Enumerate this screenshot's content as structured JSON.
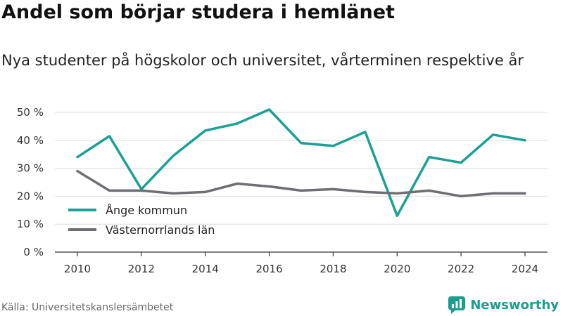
{
  "title": "Andel som börjar studera i hemlänet",
  "subtitle": "Nya studenter på högskolor och universitet, vårterminen respektive år",
  "source": "Källa: Universitetskanslersämbetet",
  "brand": {
    "name": "Newsworthy",
    "icon": "newsworthy-logo-icon",
    "color": "#1b9e8f"
  },
  "chart_data": {
    "type": "line",
    "x": [
      2010,
      2011,
      2012,
      2013,
      2014,
      2015,
      2016,
      2017,
      2018,
      2019,
      2020,
      2021,
      2022,
      2023,
      2024
    ],
    "x_ticks": [
      "2010",
      "2012",
      "2014",
      "2016",
      "2018",
      "2020",
      "2022",
      "2024"
    ],
    "xlim": [
      2010,
      2024
    ],
    "y_ticks": [
      "0 %",
      "10 %",
      "20 %",
      "30 %",
      "40 %",
      "50 %"
    ],
    "ylim": [
      0,
      50
    ],
    "grid": "horizontal",
    "legend_position": "bottom-left",
    "series": [
      {
        "name": "Ånge kommun",
        "color": "#1aa095",
        "values": [
          34,
          41.5,
          22.5,
          34.5,
          43.5,
          46,
          51,
          39,
          38,
          43,
          13,
          34,
          32,
          42,
          40
        ]
      },
      {
        "name": "Västernorrlands län",
        "color": "#6e6e73",
        "values": [
          29,
          22,
          22,
          21,
          21.5,
          24.5,
          23.5,
          22,
          22.5,
          21.5,
          21,
          22,
          20,
          21,
          21
        ]
      }
    ]
  }
}
